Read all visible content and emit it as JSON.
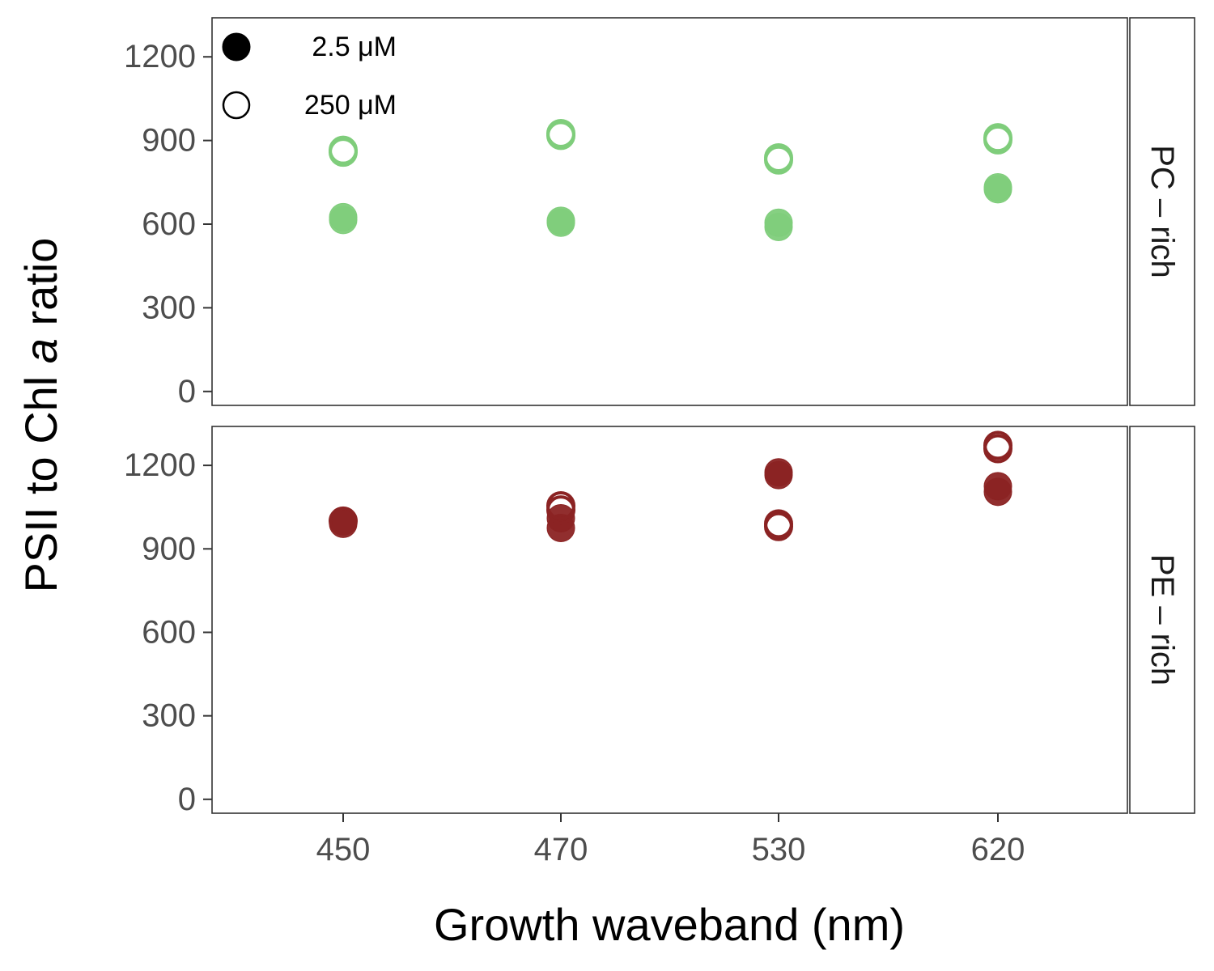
{
  "chart_data": {
    "type": "scatter",
    "xlabel": "Growth waveband (nm)",
    "ylabel_parts": [
      "PSII to Chl ",
      "a",
      " ratio"
    ],
    "categories": [
      "450",
      "470",
      "530",
      "620"
    ],
    "yticks": [
      0,
      300,
      600,
      900,
      1200
    ],
    "ylim": [
      -50,
      1340
    ],
    "legend": {
      "placement": "top-left",
      "entries": [
        {
          "label": "2.5 μM",
          "marker": "filled-circle"
        },
        {
          "label": "250 μM",
          "marker": "open-circle"
        }
      ]
    },
    "panels": [
      {
        "strip": "PC – rich",
        "color": "#7fcd7b",
        "series": [
          {
            "legend": "2.5 μM",
            "filled": true,
            "points": [
              [
                "450",
                615
              ],
              [
                "450",
                625
              ],
              [
                "470",
                605
              ],
              [
                "470",
                612
              ],
              [
                "530",
                590
              ],
              [
                "530",
                605
              ],
              [
                "620",
                725
              ],
              [
                "620",
                732
              ]
            ]
          },
          {
            "legend": "250 μM",
            "filled": false,
            "points": [
              [
                "450",
                858
              ],
              [
                "450",
                865
              ],
              [
                "470",
                918
              ],
              [
                "470",
                925
              ],
              [
                "530",
                830
              ],
              [
                "530",
                838
              ],
              [
                "620",
                902
              ],
              [
                "620",
                910
              ]
            ]
          }
        ]
      },
      {
        "strip": "PE – rich",
        "color": "#8b2323",
        "series": [
          {
            "legend": "2.5 μM",
            "filled": true,
            "points": [
              [
                "450",
                990
              ],
              [
                "450",
                1000
              ],
              [
                "470",
                975
              ],
              [
                "470",
                1010
              ],
              [
                "530",
                1165
              ],
              [
                "530",
                1175
              ],
              [
                "620",
                1105
              ],
              [
                "620",
                1125
              ]
            ]
          },
          {
            "legend": "250 μM",
            "filled": false,
            "points": [
              [
                "450",
                1000
              ],
              [
                "470",
                1040
              ],
              [
                "470",
                1055
              ],
              [
                "530",
                980
              ],
              [
                "530",
                990
              ],
              [
                "620",
                1260
              ],
              [
                "620",
                1272
              ]
            ]
          }
        ]
      }
    ]
  }
}
